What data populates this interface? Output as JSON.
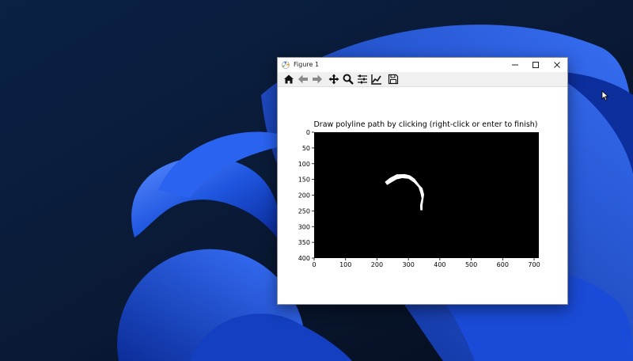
{
  "window": {
    "title": "Figure 1",
    "minimize_icon": "minimize-icon",
    "maximize_icon": "maximize-icon",
    "close_icon": "close-icon"
  },
  "toolbar": {
    "buttons": [
      {
        "name": "home-icon",
        "tooltip": "Reset original view"
      },
      {
        "name": "back-arrow-icon",
        "tooltip": "Back to previous view"
      },
      {
        "name": "forward-arrow-icon",
        "tooltip": "Forward to next view"
      },
      {
        "name": "pan-icon",
        "tooltip": "Pan axes"
      },
      {
        "name": "zoom-icon",
        "tooltip": "Zoom to rectangle"
      },
      {
        "name": "configure-subplots-icon",
        "tooltip": "Configure subplots"
      },
      {
        "name": "edit-axis-icon",
        "tooltip": "Edit axis"
      },
      {
        "name": "save-icon",
        "tooltip": "Save the figure"
      }
    ]
  },
  "colors": {
    "plot_background": "#000000",
    "mask_color": "#ffffff",
    "wallpaper_accent": "#1f56e0"
  },
  "chart_data": {
    "type": "heatmap",
    "title": "Draw polyline path by clicking (right-click or enter to finish)",
    "xlabel": "",
    "ylabel": "",
    "xlim": [
      0,
      715
    ],
    "ylim": [
      400,
      0
    ],
    "x_ticks": [
      "0",
      "100",
      "200",
      "300",
      "400",
      "500",
      "600",
      "700"
    ],
    "y_ticks": [
      "0",
      "50",
      "100",
      "150",
      "200",
      "250",
      "300",
      "350",
      "400"
    ],
    "grid": false,
    "mask_polygon": [
      [
        225,
        158
      ],
      [
        240,
        146
      ],
      [
        262,
        134
      ],
      [
        288,
        133
      ],
      [
        305,
        137
      ],
      [
        320,
        148
      ],
      [
        335,
        168
      ],
      [
        345,
        178
      ],
      [
        350,
        198
      ],
      [
        345,
        232
      ],
      [
        345,
        248
      ],
      [
        338,
        248
      ],
      [
        337,
        232
      ],
      [
        342,
        210
      ],
      [
        338,
        193
      ],
      [
        332,
        175
      ],
      [
        318,
        160
      ],
      [
        300,
        148
      ],
      [
        280,
        146
      ],
      [
        262,
        150
      ],
      [
        245,
        160
      ],
      [
        232,
        168
      ]
    ]
  }
}
